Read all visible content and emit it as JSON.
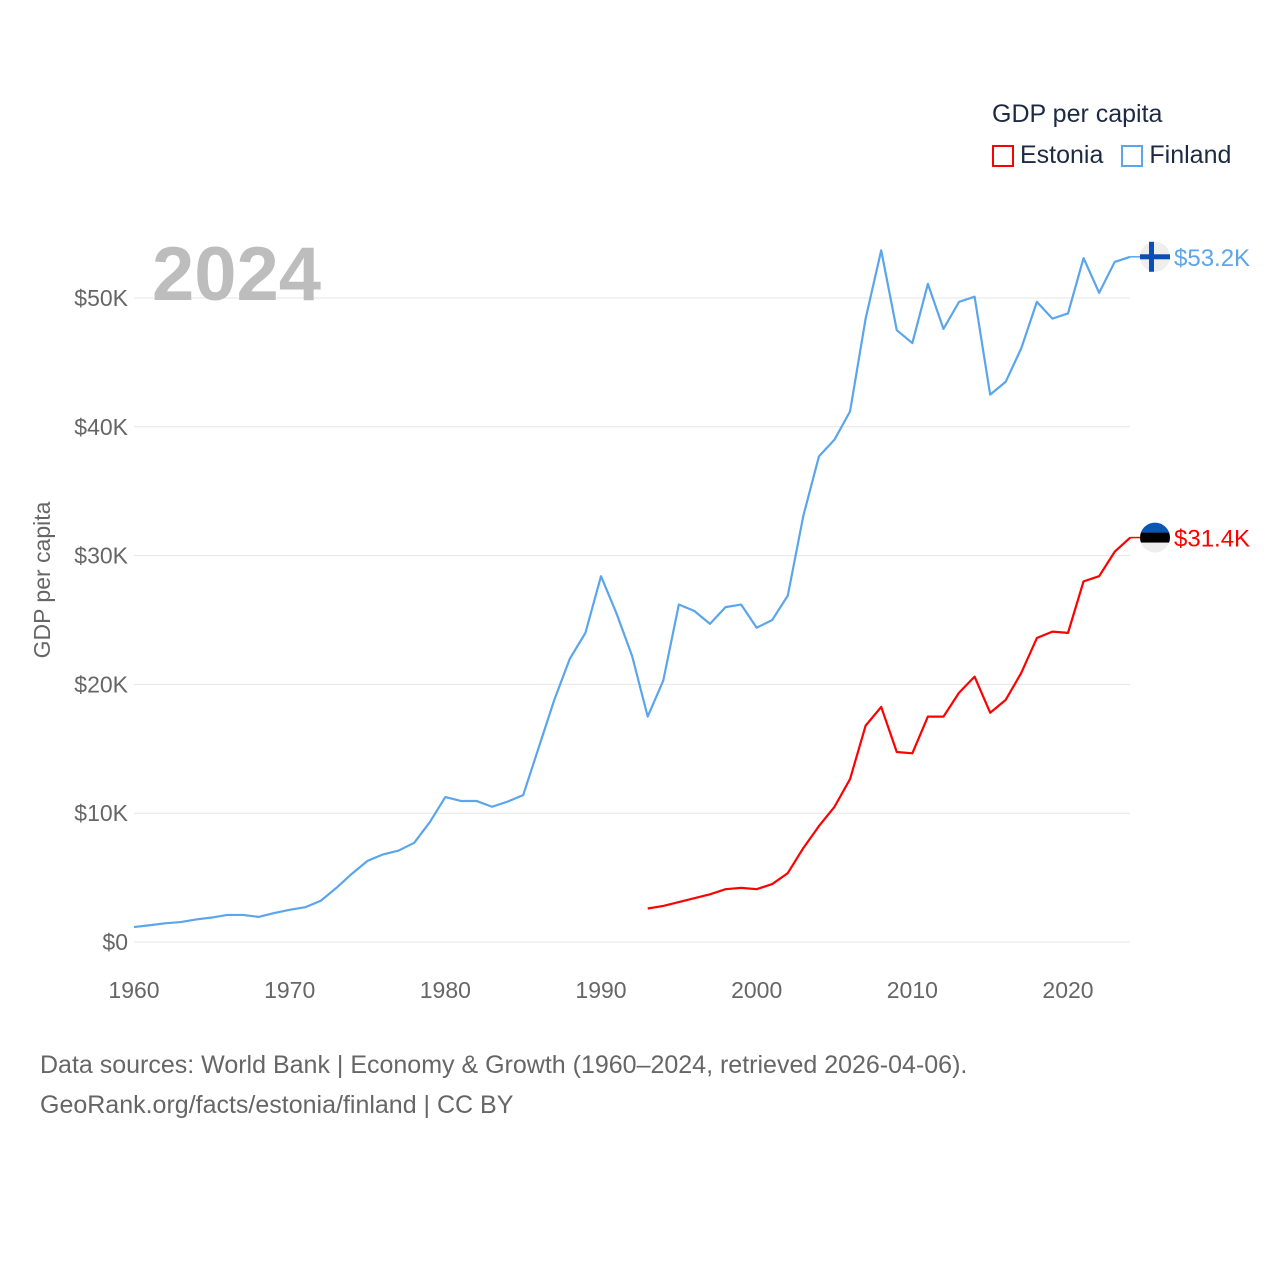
{
  "chart_data": {
    "type": "line",
    "year_label": "2024",
    "ylabel": "GDP per capita",
    "xlim": [
      1960,
      2024
    ],
    "ylim": [
      0,
      55000
    ],
    "x_ticks": [
      1960,
      1970,
      1980,
      1990,
      2000,
      2010,
      2020
    ],
    "x_tick_labels": [
      "1960",
      "1970",
      "1980",
      "1990",
      "2000",
      "2010",
      "2020"
    ],
    "y_ticks": [
      0,
      10000,
      20000,
      30000,
      40000,
      50000
    ],
    "y_tick_labels": [
      "$0",
      "$10K",
      "$20K",
      "$30K",
      "$40K",
      "$50K"
    ],
    "grid": true,
    "legend": {
      "title": "GDP per capita",
      "placement": "top-right"
    },
    "series": [
      {
        "name": "Estonia",
        "color": "#ff0000",
        "end_label": "$31.4K",
        "flag": "estonia-flag",
        "x": [
          1993,
          1994,
          1995,
          1996,
          1997,
          1998,
          1999,
          2000,
          2001,
          2002,
          2003,
          2004,
          2005,
          2006,
          2007,
          2008,
          2009,
          2010,
          2011,
          2012,
          2013,
          2014,
          2015,
          2016,
          2017,
          2018,
          2019,
          2020,
          2021,
          2022,
          2023,
          2024
        ],
        "values": [
          2.6,
          2.8,
          3.1,
          3.4,
          3.7,
          4.1,
          4.2,
          4.1,
          4.5,
          5.35,
          7.3,
          9.0,
          10.5,
          12.65,
          16.8,
          18.25,
          14.75,
          14.65,
          17.5,
          17.5,
          19.35,
          20.6,
          17.8,
          18.8,
          20.9,
          23.6,
          24.1,
          24.0,
          28.0,
          28.4,
          30.3,
          31.4
        ]
      },
      {
        "name": "Finland",
        "color": "#5aa5ec",
        "end_label": "$53.2K",
        "flag": "finland-flag",
        "x": [
          1960,
          1961,
          1962,
          1963,
          1964,
          1965,
          1966,
          1967,
          1968,
          1969,
          1970,
          1971,
          1972,
          1973,
          1974,
          1975,
          1976,
          1977,
          1978,
          1979,
          1980,
          1981,
          1982,
          1983,
          1984,
          1985,
          1986,
          1987,
          1988,
          1989,
          1990,
          1991,
          1992,
          1993,
          1994,
          1995,
          1996,
          1997,
          1998,
          1999,
          2000,
          2001,
          2002,
          2003,
          2004,
          2005,
          2006,
          2007,
          2008,
          2009,
          2010,
          2011,
          2012,
          2013,
          2014,
          2015,
          2016,
          2017,
          2018,
          2019,
          2020,
          2021,
          2022,
          2023,
          2024
        ],
        "values": [
          1.16,
          1.3,
          1.45,
          1.55,
          1.75,
          1.9,
          2.1,
          2.1,
          1.95,
          2.25,
          2.5,
          2.7,
          3.2,
          4.2,
          5.3,
          6.3,
          6.8,
          7.1,
          7.7,
          9.3,
          11.25,
          10.95,
          10.95,
          10.5,
          10.9,
          11.4,
          15.1,
          18.8,
          22.0,
          24.0,
          28.4,
          25.5,
          22.2,
          17.5,
          20.3,
          26.2,
          25.7,
          24.7,
          26.0,
          26.2,
          24.4,
          25.0,
          26.9,
          33.1,
          37.7,
          39.0,
          41.2,
          48.4,
          53.7,
          47.5,
          46.5,
          51.1,
          47.6,
          49.7,
          50.1,
          42.5,
          43.5,
          46.1,
          49.7,
          48.4,
          48.8,
          53.1,
          50.4,
          52.8,
          53.2
        ]
      }
    ],
    "value_unit": "thousand USD"
  },
  "source": {
    "line1": "Data sources: World Bank | Economy & Growth (1960–2024, retrieved 2026-04-06).",
    "line2": "GeoRank.org/facts/estonia/finland | CC BY"
  }
}
